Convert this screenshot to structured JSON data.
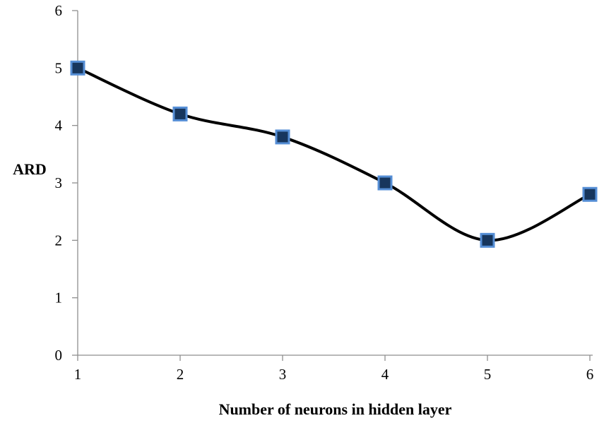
{
  "chart_data": {
    "type": "line",
    "title": "",
    "x": [
      1,
      2,
      3,
      4,
      5,
      6
    ],
    "series": [
      {
        "name": "ARD",
        "values": [
          5,
          4.2,
          3.8,
          3,
          2,
          2.8
        ]
      }
    ],
    "xlabel": "Number of neurons in hidden layer",
    "ylabel": "ARD",
    "xlim": [
      1,
      6
    ],
    "ylim": [
      0,
      6
    ],
    "x_ticks": [
      1,
      2,
      3,
      4,
      5,
      6
    ],
    "y_ticks": [
      0,
      1,
      2,
      3,
      4,
      5,
      6
    ],
    "grid": false,
    "smooth": true,
    "legend": "none",
    "marker": "square",
    "colors": {
      "line": "#000000",
      "marker_fill": "#17365D",
      "marker_border": "#558ED5",
      "axis": "#8E8E8E",
      "text": "#000000"
    }
  }
}
